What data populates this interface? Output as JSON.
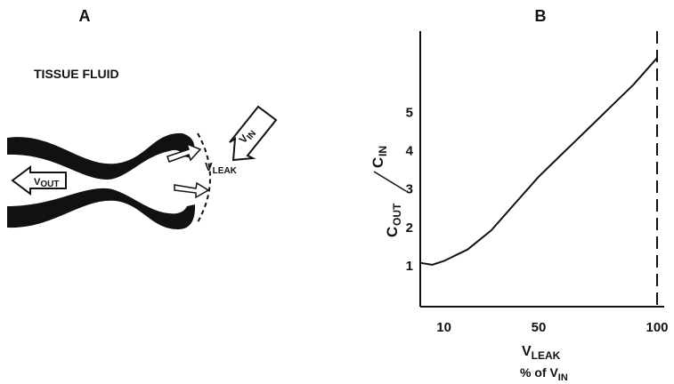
{
  "panel_a": {
    "label": "A",
    "region_label": "TISSUE FLUID",
    "flows": [
      {
        "symbol": "V",
        "sub": "OUT"
      },
      {
        "symbol": "V",
        "sub": "LEAK"
      },
      {
        "symbol": "V",
        "sub": "IN"
      }
    ]
  },
  "chart_data": {
    "type": "line",
    "label": "B",
    "ylabel": {
      "numerator": "C",
      "numerator_sub": "OUT",
      "denominator": "C",
      "denominator_sub": "IN"
    },
    "xlabel": {
      "symbol": "V",
      "sub": "LEAK",
      "unit": "% of V",
      "unit_sub": "IN"
    },
    "x": [
      0,
      5,
      10,
      20,
      30,
      40,
      50,
      60,
      70,
      80,
      90,
      100
    ],
    "series": [
      {
        "color": "#111111",
        "values": [
          1.05,
          1.0,
          1.1,
          1.4,
          1.9,
          2.6,
          3.3,
          3.9,
          4.5,
          5.1,
          5.7,
          6.4
        ]
      }
    ],
    "xlim": [
      0,
      103
    ],
    "ylim": [
      0,
      7.1
    ],
    "xticks": [
      10,
      50,
      100
    ],
    "yticks": [
      1,
      2,
      3,
      4,
      5
    ],
    "vline": 100,
    "grid": false
  }
}
